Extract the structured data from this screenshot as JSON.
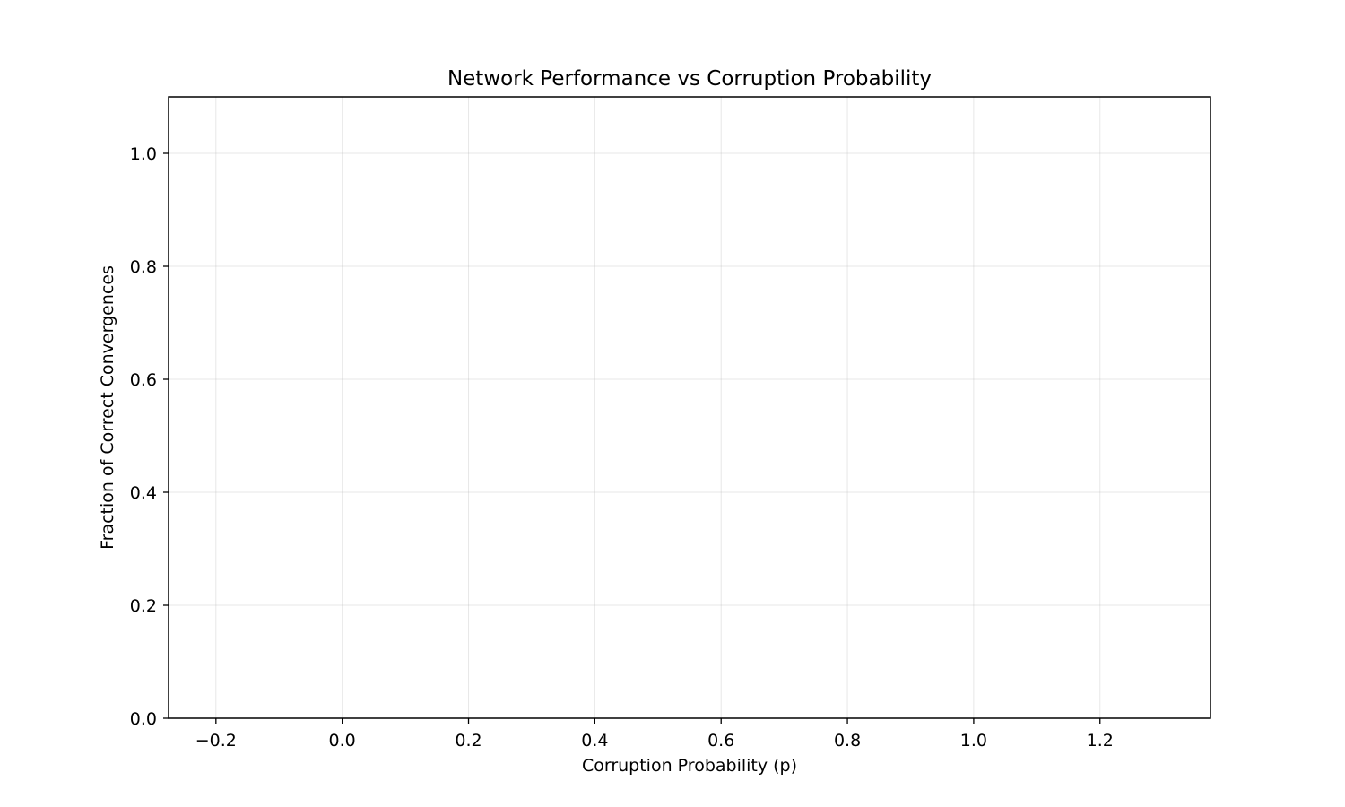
{
  "chart_data": {
    "type": "line",
    "title": "Network Performance vs Corruption Probability",
    "xlabel": "Corruption Probability (p)",
    "ylabel": "Fraction of Correct Convergences",
    "xlim": [
      -0.275,
      1.375
    ],
    "ylim": [
      0.0,
      1.1
    ],
    "xticks": [
      -0.2,
      0.0,
      0.2,
      0.4,
      0.6,
      0.8,
      1.0,
      1.2
    ],
    "xtick_labels": [
      "−0.2",
      "0.0",
      "0.2",
      "0.4",
      "0.6",
      "0.8",
      "1.0",
      "1.2"
    ],
    "yticks": [
      0.0,
      0.2,
      0.4,
      0.6,
      0.8,
      1.0
    ],
    "ytick_labels": [
      "0.0",
      "0.2",
      "0.4",
      "0.6",
      "0.8",
      "1.0"
    ],
    "grid": true,
    "series": []
  }
}
